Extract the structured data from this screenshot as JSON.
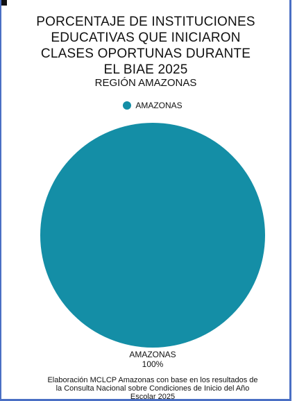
{
  "title_lines": [
    "PORCENTAJE DE INSTITUCIONES",
    "EDUCATIVAS QUE INICIARON",
    "CLASES OPORTUNAS DURANTE",
    "EL BIAE 2025"
  ],
  "subtitle": "REGIÓN AMAZONAS",
  "footnote_lines": [
    "Elaboración MCLCP Amazonas con base en los resultados de",
    "la Consulta Nacional sobre Condiciones de Inicio del Año",
    "Escolar 2025"
  ],
  "colors": {
    "slice": "#148ea6",
    "frame": "#4a6fc4"
  },
  "chart_data": {
    "type": "pie",
    "title": "PORCENTAJE DE INSTITUCIONES EDUCATIVAS QUE INICIARON CLASES OPORTUNAS DURANTE EL BIAE 2025",
    "subtitle": "REGIÓN AMAZONAS",
    "legend_position": "top-center",
    "slices": [
      {
        "label": "AMAZONAS",
        "value": 100,
        "value_label": "100%"
      }
    ]
  }
}
